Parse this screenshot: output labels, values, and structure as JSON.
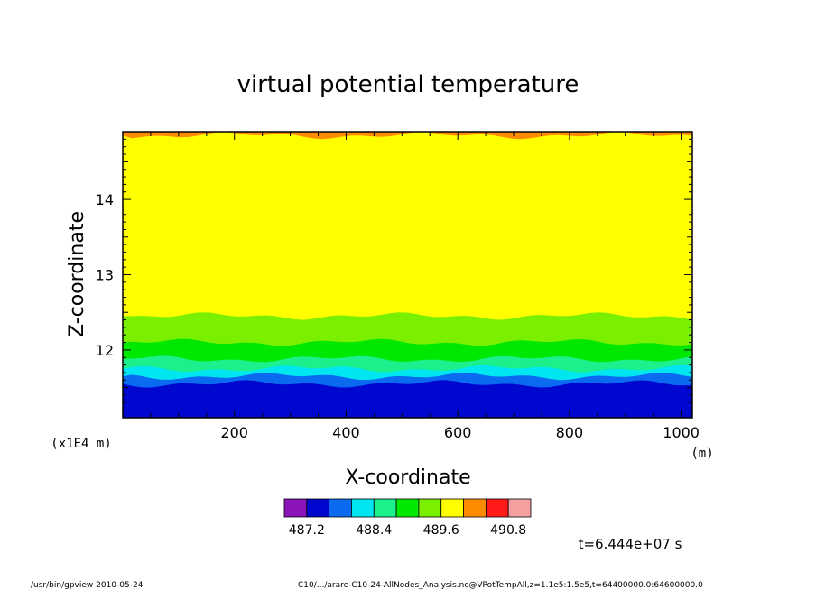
{
  "chart_data": {
    "type": "heatmap",
    "title": "virtual potential temperature",
    "xlabel": "X-coordinate",
    "ylabel": "Z-coordinate",
    "x_unit": "(m)",
    "y_unit": "(x1E4 m)",
    "xlim": [
      0,
      1020
    ],
    "ylim": [
      11.1,
      14.9
    ],
    "x_ticks": [
      200,
      400,
      600,
      800,
      1000
    ],
    "y_ticks": [
      12,
      13,
      14
    ],
    "x_tick_labels": [
      "200",
      "400",
      "600",
      "800",
      "1000"
    ],
    "y_tick_labels": [
      "12",
      "13",
      "14"
    ],
    "grid": false,
    "colorbar": {
      "levels": [
        486.8,
        487.2,
        487.6,
        488.0,
        488.4,
        488.8,
        489.2,
        489.6,
        490.0,
        490.4,
        490.8,
        491.2
      ],
      "colors": [
        "#8a14b8",
        "#0008d0",
        "#0a6af0",
        "#00e6f0",
        "#1cf08c",
        "#00e800",
        "#7af000",
        "#ffff00",
        "#ff8c00",
        "#ff1a1a",
        "#f5a0a0"
      ],
      "labels": [
        "487.2",
        "488.4",
        "489.6",
        "490.8"
      ]
    },
    "layers_bottom_up": [
      {
        "min": 487.2,
        "max": 487.6,
        "z_top": 11.55,
        "color": "#0008d0"
      },
      {
        "min": 487.6,
        "max": 488.0,
        "z_top": 11.65,
        "color": "#0a6af0"
      },
      {
        "min": 488.0,
        "max": 488.4,
        "z_top": 11.75,
        "color": "#00e6f0"
      },
      {
        "min": 488.4,
        "max": 488.8,
        "z_top": 11.88,
        "color": "#1cf08c"
      },
      {
        "min": 488.8,
        "max": 489.2,
        "z_top": 12.1,
        "color": "#00e800"
      },
      {
        "min": 489.2,
        "max": 489.6,
        "z_top": 12.45,
        "color": "#7af000"
      },
      {
        "min": 489.6,
        "max": 490.0,
        "z_top": 14.85,
        "color": "#ffff00"
      },
      {
        "min": 490.0,
        "max": 490.4,
        "z_top": 14.9,
        "color": "#ff8c00"
      }
    ],
    "time_label": "t=6.444e+07 s"
  },
  "footer": {
    "left": "/usr/bin/gpview  2010-05-24",
    "right": "C10/.../arare-C10-24-AllNodes_Analysis.nc@VPotTempAll,z=1.1e5:1.5e5,t=64400000.0:64600000.0"
  }
}
